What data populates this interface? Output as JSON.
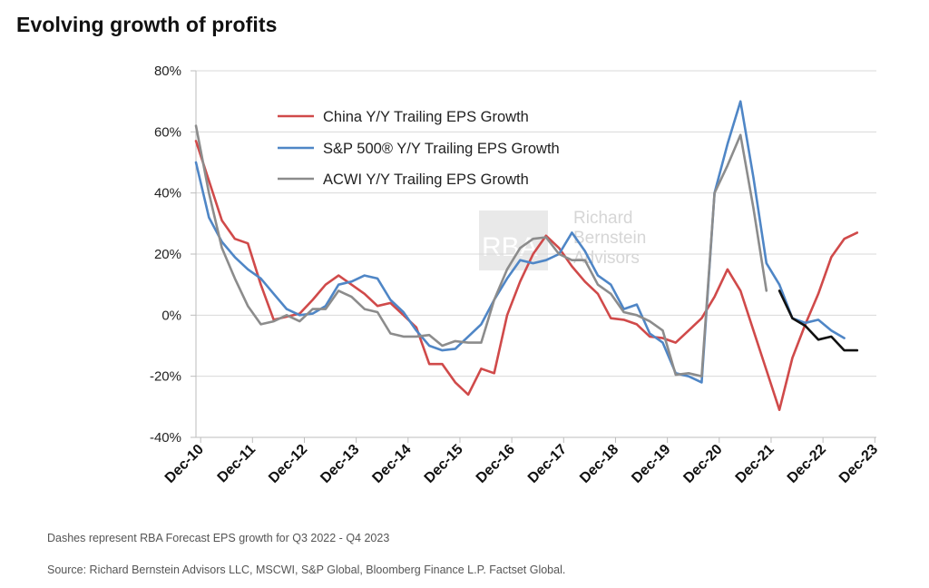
{
  "header": {
    "title": "Evolving growth of profits"
  },
  "chart_data": {
    "type": "line",
    "title": "Evolving growth of profits",
    "xlabel": "",
    "ylabel": "",
    "ylim": [
      -40,
      80
    ],
    "yticks": [
      -40,
      -20,
      0,
      20,
      40,
      60,
      80
    ],
    "ytick_labels": [
      "-40%",
      "-20%",
      "0%",
      "20%",
      "40%",
      "60%",
      "80%"
    ],
    "xlim": [
      2010.83,
      2023.95
    ],
    "xticks": [
      2010.92,
      2011.92,
      2012.92,
      2013.92,
      2014.92,
      2015.92,
      2016.92,
      2017.92,
      2018.92,
      2019.92,
      2020.92,
      2021.92,
      2022.92,
      2023.92
    ],
    "xtick_labels": [
      "Dec-10",
      "Dec-11",
      "Dec-12",
      "Dec-13",
      "Dec-14",
      "Dec-15",
      "Dec-16",
      "Dec-17",
      "Dec-18",
      "Dec-19",
      "Dec-20",
      "Dec-21",
      "Dec-22",
      "Dec-23"
    ],
    "grid": true,
    "legend": "top-left",
    "series": [
      {
        "name": "China Y/Y Trailing EPS Growth",
        "color": "#d04a4a",
        "x": [
          2010.83,
          2011.08,
          2011.33,
          2011.58,
          2011.83,
          2012.08,
          2012.33,
          2012.58,
          2012.83,
          2013.08,
          2013.33,
          2013.58,
          2013.83,
          2014.08,
          2014.33,
          2014.58,
          2014.83,
          2015.08,
          2015.33,
          2015.58,
          2015.83,
          2016.08,
          2016.33,
          2016.58,
          2016.83,
          2017.08,
          2017.33,
          2017.58,
          2017.83,
          2018.08,
          2018.33,
          2018.58,
          2018.83,
          2019.08,
          2019.33,
          2019.58,
          2019.83,
          2020.08,
          2020.33,
          2020.58,
          2020.83,
          2021.08,
          2021.33,
          2021.58,
          2021.83,
          2022.08,
          2022.33,
          2022.58,
          2022.83,
          2023.08,
          2023.33,
          2023.58,
          2023.83
        ],
        "values": [
          57,
          44,
          31,
          25,
          23.5,
          10,
          -1.5,
          -0.5,
          0.5,
          5,
          10,
          13,
          10,
          7,
          3,
          4,
          0,
          -4,
          -16,
          -16,
          -22,
          -26,
          -17.5,
          -19,
          0,
          11,
          20,
          26,
          22,
          16,
          11,
          7,
          -1,
          -1.5,
          -3,
          -7,
          -7.5,
          -9,
          -5,
          -1,
          6,
          15,
          8,
          -5,
          -18,
          -31,
          -14,
          -3,
          7,
          19,
          25,
          27,
          null
        ]
      },
      {
        "name": "S&P 500® Y/Y Trailing EPS Growth",
        "color": "#4f86c6",
        "x": [
          2010.83,
          2011.08,
          2011.33,
          2011.58,
          2011.83,
          2012.08,
          2012.33,
          2012.58,
          2012.83,
          2013.08,
          2013.33,
          2013.58,
          2013.83,
          2014.08,
          2014.33,
          2014.58,
          2014.83,
          2015.08,
          2015.33,
          2015.58,
          2015.83,
          2016.08,
          2016.33,
          2016.58,
          2016.83,
          2017.08,
          2017.33,
          2017.58,
          2017.83,
          2018.08,
          2018.33,
          2018.58,
          2018.83,
          2019.08,
          2019.33,
          2019.58,
          2019.83,
          2020.08,
          2020.33,
          2020.58,
          2020.83,
          2021.08,
          2021.33,
          2021.58,
          2021.83,
          2022.08,
          2022.33,
          2022.58,
          2022.83,
          2023.08,
          2023.33,
          2023.58,
          2023.83
        ],
        "values": [
          50,
          32,
          24,
          19,
          15,
          12,
          7,
          2,
          0,
          0.5,
          3,
          10,
          11,
          13,
          12,
          5,
          1,
          -5,
          -10,
          -11.5,
          -11,
          -7,
          -3,
          5,
          12,
          18,
          17,
          18,
          20,
          27,
          21,
          13,
          10,
          2,
          3.5,
          -6,
          -9,
          -19,
          -20,
          -22,
          40,
          56,
          70,
          45,
          17,
          10,
          -1,
          -2.5,
          -1.5,
          -5,
          -7.5,
          null,
          null
        ]
      },
      {
        "name": "ACWI Y/Y Trailing EPS Growth",
        "color": "#8c8c8c",
        "x": [
          2010.83,
          2011.08,
          2011.33,
          2011.58,
          2011.83,
          2012.08,
          2012.33,
          2012.58,
          2012.83,
          2013.08,
          2013.33,
          2013.58,
          2013.83,
          2014.08,
          2014.33,
          2014.58,
          2014.83,
          2015.08,
          2015.33,
          2015.58,
          2015.83,
          2016.08,
          2016.33,
          2016.58,
          2016.83,
          2017.08,
          2017.33,
          2017.58,
          2017.83,
          2018.08,
          2018.33,
          2018.58,
          2018.83,
          2019.08,
          2019.33,
          2019.58,
          2019.83,
          2020.08,
          2020.33,
          2020.58,
          2020.83,
          2021.08,
          2021.33,
          2021.58,
          2021.83,
          2022.08,
          2022.33
        ],
        "values": [
          62,
          40,
          22,
          12,
          3,
          -3,
          -2,
          0,
          -2,
          2,
          2,
          8,
          6,
          2,
          1,
          -6,
          -7,
          -7,
          -6.5,
          -10,
          -8.5,
          -9,
          -9,
          5,
          15,
          22,
          25,
          25.5,
          20,
          18,
          18,
          10,
          7,
          1,
          0,
          -2,
          -5,
          -19.5,
          -19,
          -20,
          40,
          49,
          59,
          35,
          8,
          null,
          null
        ]
      },
      {
        "name": "RBA Forecast",
        "color": "#111111",
        "x": [
          2022.08,
          2022.33,
          2022.58,
          2022.83,
          2023.08,
          2023.33,
          2023.58,
          2023.83
        ],
        "values": [
          8,
          -1,
          -3.5,
          -8,
          -7,
          -11.5,
          -11.5,
          null
        ]
      }
    ],
    "watermark": {
      "line1": "Richard",
      "line2": "Bernstein",
      "line3": "Advisors",
      "logo": "RBA"
    }
  },
  "footnotes": {
    "dashes": "Dashes represent RBA Forecast EPS growth for Q3 2022 - Q4 2023",
    "source": "Source:  Richard Bernstein Advisors LLC, MSCWI, S&P Global, Bloomberg Finance L.P. Factset Global."
  }
}
